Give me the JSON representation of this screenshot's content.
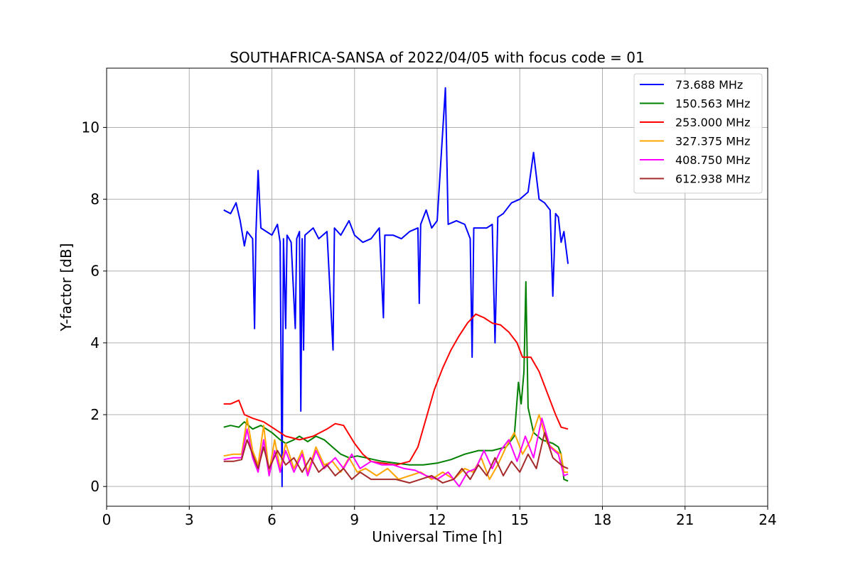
{
  "chart_data": {
    "type": "line",
    "title": "SOUTHAFRICA-SANSA of 2022/04/05 with focus code = 01",
    "xlabel": "Universal Time [h]",
    "ylabel": "Y-factor [dB]",
    "xlim": [
      0,
      24
    ],
    "ylim": [
      -0.55,
      11.65
    ],
    "xticks": [
      0,
      3,
      6,
      9,
      12,
      15,
      18,
      21,
      24
    ],
    "yticks": [
      0,
      2,
      4,
      6,
      8,
      10
    ],
    "grid": true,
    "legend_position": "top-right",
    "series": [
      {
        "name": " 73.688 MHz",
        "color": "#0000ff",
        "points": [
          [
            4.25,
            7.7
          ],
          [
            4.5,
            7.6
          ],
          [
            4.7,
            7.9
          ],
          [
            4.85,
            7.4
          ],
          [
            5.0,
            6.7
          ],
          [
            5.1,
            7.1
          ],
          [
            5.3,
            6.9
          ],
          [
            5.37,
            4.4
          ],
          [
            5.42,
            7.0
          ],
          [
            5.5,
            8.8
          ],
          [
            5.6,
            7.2
          ],
          [
            6.0,
            7.0
          ],
          [
            6.2,
            7.3
          ],
          [
            6.3,
            6.8
          ],
          [
            6.37,
            0.0
          ],
          [
            6.42,
            6.9
          ],
          [
            6.5,
            4.4
          ],
          [
            6.55,
            7.0
          ],
          [
            6.7,
            6.8
          ],
          [
            6.85,
            4.4
          ],
          [
            6.9,
            6.9
          ],
          [
            7.0,
            7.1
          ],
          [
            7.05,
            2.1
          ],
          [
            7.1,
            6.9
          ],
          [
            7.15,
            3.8
          ],
          [
            7.2,
            7.0
          ],
          [
            7.5,
            7.2
          ],
          [
            7.7,
            6.9
          ],
          [
            8.0,
            7.1
          ],
          [
            8.22,
            3.8
          ],
          [
            8.27,
            7.2
          ],
          [
            8.5,
            7.0
          ],
          [
            8.8,
            7.4
          ],
          [
            9.0,
            7.0
          ],
          [
            9.3,
            6.8
          ],
          [
            9.6,
            6.9
          ],
          [
            9.9,
            7.2
          ],
          [
            10.05,
            4.7
          ],
          [
            10.1,
            7.0
          ],
          [
            10.4,
            7.0
          ],
          [
            10.7,
            6.9
          ],
          [
            11.0,
            7.1
          ],
          [
            11.3,
            7.2
          ],
          [
            11.35,
            5.1
          ],
          [
            11.4,
            7.3
          ],
          [
            11.6,
            7.7
          ],
          [
            11.8,
            7.2
          ],
          [
            12.0,
            7.4
          ],
          [
            12.3,
            11.1
          ],
          [
            12.4,
            7.3
          ],
          [
            12.7,
            7.4
          ],
          [
            13.0,
            7.3
          ],
          [
            13.2,
            6.9
          ],
          [
            13.27,
            3.6
          ],
          [
            13.33,
            7.2
          ],
          [
            13.6,
            7.2
          ],
          [
            13.8,
            7.2
          ],
          [
            14.0,
            7.3
          ],
          [
            14.1,
            4.0
          ],
          [
            14.2,
            7.5
          ],
          [
            14.4,
            7.6
          ],
          [
            14.7,
            7.9
          ],
          [
            15.0,
            8.0
          ],
          [
            15.3,
            8.2
          ],
          [
            15.5,
            9.3
          ],
          [
            15.7,
            8.0
          ],
          [
            15.9,
            7.9
          ],
          [
            16.1,
            7.7
          ],
          [
            16.2,
            5.3
          ],
          [
            16.3,
            7.6
          ],
          [
            16.4,
            7.5
          ],
          [
            16.5,
            6.8
          ],
          [
            16.6,
            7.1
          ],
          [
            16.75,
            6.2
          ]
        ]
      },
      {
        "name": "150.563 MHz",
        "color": "#008000",
        "points": [
          [
            4.25,
            1.65
          ],
          [
            4.5,
            1.7
          ],
          [
            4.8,
            1.65
          ],
          [
            5.0,
            1.8
          ],
          [
            5.3,
            1.6
          ],
          [
            5.6,
            1.7
          ],
          [
            6.0,
            1.5
          ],
          [
            6.3,
            1.3
          ],
          [
            6.5,
            1.2
          ],
          [
            6.8,
            1.3
          ],
          [
            7.0,
            1.4
          ],
          [
            7.3,
            1.25
          ],
          [
            7.6,
            1.4
          ],
          [
            7.9,
            1.3
          ],
          [
            8.2,
            1.1
          ],
          [
            8.5,
            0.9
          ],
          [
            8.8,
            0.8
          ],
          [
            9.1,
            0.85
          ],
          [
            9.4,
            0.8
          ],
          [
            9.7,
            0.75
          ],
          [
            10.0,
            0.7
          ],
          [
            10.5,
            0.65
          ],
          [
            11.0,
            0.6
          ],
          [
            11.5,
            0.6
          ],
          [
            12.0,
            0.65
          ],
          [
            12.5,
            0.75
          ],
          [
            13.0,
            0.9
          ],
          [
            13.5,
            1.0
          ],
          [
            14.0,
            1.0
          ],
          [
            14.5,
            1.1
          ],
          [
            14.8,
            1.4
          ],
          [
            14.95,
            2.9
          ],
          [
            15.05,
            2.3
          ],
          [
            15.15,
            3.2
          ],
          [
            15.22,
            5.7
          ],
          [
            15.3,
            2.2
          ],
          [
            15.5,
            1.5
          ],
          [
            15.8,
            1.3
          ],
          [
            16.0,
            1.25
          ],
          [
            16.2,
            1.2
          ],
          [
            16.4,
            1.1
          ],
          [
            16.5,
            0.9
          ],
          [
            16.6,
            0.2
          ],
          [
            16.75,
            0.15
          ]
        ]
      },
      {
        "name": "253.000 MHz",
        "color": "#ff0000",
        "points": [
          [
            4.25,
            2.3
          ],
          [
            4.5,
            2.3
          ],
          [
            4.8,
            2.4
          ],
          [
            5.0,
            2.0
          ],
          [
            5.3,
            1.9
          ],
          [
            5.7,
            1.8
          ],
          [
            6.0,
            1.65
          ],
          [
            6.5,
            1.4
          ],
          [
            7.0,
            1.3
          ],
          [
            7.5,
            1.4
          ],
          [
            8.0,
            1.6
          ],
          [
            8.3,
            1.75
          ],
          [
            8.6,
            1.7
          ],
          [
            9.0,
            1.2
          ],
          [
            9.3,
            0.9
          ],
          [
            9.6,
            0.7
          ],
          [
            10.0,
            0.65
          ],
          [
            10.5,
            0.6
          ],
          [
            11.0,
            0.7
          ],
          [
            11.3,
            1.1
          ],
          [
            11.6,
            1.9
          ],
          [
            11.9,
            2.7
          ],
          [
            12.2,
            3.3
          ],
          [
            12.5,
            3.8
          ],
          [
            12.8,
            4.2
          ],
          [
            13.1,
            4.55
          ],
          [
            13.4,
            4.8
          ],
          [
            13.7,
            4.7
          ],
          [
            14.0,
            4.55
          ],
          [
            14.3,
            4.5
          ],
          [
            14.6,
            4.3
          ],
          [
            14.9,
            4.0
          ],
          [
            15.1,
            3.6
          ],
          [
            15.4,
            3.6
          ],
          [
            15.7,
            3.2
          ],
          [
            16.0,
            2.6
          ],
          [
            16.3,
            2.0
          ],
          [
            16.5,
            1.65
          ],
          [
            16.75,
            1.6
          ]
        ]
      },
      {
        "name": "327.375 MHz",
        "color": "#ffa500",
        "points": [
          [
            4.25,
            0.85
          ],
          [
            4.6,
            0.9
          ],
          [
            4.9,
            0.9
          ],
          [
            5.1,
            1.9
          ],
          [
            5.3,
            1.0
          ],
          [
            5.5,
            0.6
          ],
          [
            5.7,
            1.7
          ],
          [
            5.9,
            0.4
          ],
          [
            6.1,
            1.3
          ],
          [
            6.3,
            0.5
          ],
          [
            6.5,
            1.2
          ],
          [
            6.8,
            0.5
          ],
          [
            7.1,
            1.0
          ],
          [
            7.3,
            0.4
          ],
          [
            7.6,
            1.1
          ],
          [
            7.9,
            0.6
          ],
          [
            8.2,
            0.7
          ],
          [
            8.5,
            0.4
          ],
          [
            8.8,
            0.8
          ],
          [
            9.1,
            0.4
          ],
          [
            9.4,
            0.5
          ],
          [
            9.8,
            0.3
          ],
          [
            10.2,
            0.5
          ],
          [
            10.6,
            0.2
          ],
          [
            11.0,
            0.3
          ],
          [
            11.4,
            0.4
          ],
          [
            11.8,
            0.2
          ],
          [
            12.2,
            0.4
          ],
          [
            12.6,
            0.2
          ],
          [
            13.0,
            0.5
          ],
          [
            13.3,
            0.4
          ],
          [
            13.6,
            0.8
          ],
          [
            13.9,
            0.2
          ],
          [
            14.2,
            0.6
          ],
          [
            14.5,
            1.1
          ],
          [
            14.8,
            1.5
          ],
          [
            15.1,
            0.9
          ],
          [
            15.4,
            1.3
          ],
          [
            15.7,
            2.0
          ],
          [
            16.0,
            1.2
          ],
          [
            16.3,
            1.0
          ],
          [
            16.5,
            0.9
          ],
          [
            16.6,
            0.4
          ],
          [
            16.75,
            0.4
          ]
        ]
      },
      {
        "name": "408.750 MHz",
        "color": "#ff00ff",
        "points": [
          [
            4.25,
            0.75
          ],
          [
            4.6,
            0.8
          ],
          [
            4.9,
            0.8
          ],
          [
            5.1,
            1.6
          ],
          [
            5.3,
            0.8
          ],
          [
            5.5,
            0.4
          ],
          [
            5.7,
            1.3
          ],
          [
            5.9,
            0.3
          ],
          [
            6.1,
            1.0
          ],
          [
            6.3,
            0.4
          ],
          [
            6.5,
            1.0
          ],
          [
            6.8,
            0.4
          ],
          [
            7.1,
            0.9
          ],
          [
            7.3,
            0.3
          ],
          [
            7.6,
            1.0
          ],
          [
            7.9,
            0.5
          ],
          [
            8.3,
            0.8
          ],
          [
            8.6,
            0.5
          ],
          [
            8.9,
            0.9
          ],
          [
            9.2,
            0.5
          ],
          [
            9.6,
            0.7
          ],
          [
            10.0,
            0.6
          ],
          [
            10.4,
            0.6
          ],
          [
            10.8,
            0.5
          ],
          [
            11.2,
            0.45
          ],
          [
            11.6,
            0.3
          ],
          [
            12.0,
            0.2
          ],
          [
            12.4,
            0.4
          ],
          [
            12.8,
            0.0
          ],
          [
            13.1,
            0.4
          ],
          [
            13.4,
            0.5
          ],
          [
            13.7,
            1.0
          ],
          [
            14.0,
            0.5
          ],
          [
            14.3,
            1.0
          ],
          [
            14.6,
            1.3
          ],
          [
            14.9,
            0.7
          ],
          [
            15.2,
            1.4
          ],
          [
            15.5,
            0.8
          ],
          [
            15.8,
            1.9
          ],
          [
            16.1,
            1.1
          ],
          [
            16.4,
            0.9
          ],
          [
            16.6,
            0.3
          ],
          [
            16.75,
            0.35
          ]
        ]
      },
      {
        "name": "612.938 MHz",
        "color": "#a52a2a",
        "points": [
          [
            4.25,
            0.7
          ],
          [
            4.6,
            0.7
          ],
          [
            4.9,
            0.75
          ],
          [
            5.1,
            1.3
          ],
          [
            5.3,
            0.9
          ],
          [
            5.5,
            0.5
          ],
          [
            5.7,
            1.1
          ],
          [
            5.9,
            0.5
          ],
          [
            6.2,
            1.0
          ],
          [
            6.5,
            0.6
          ],
          [
            6.8,
            0.8
          ],
          [
            7.1,
            0.4
          ],
          [
            7.4,
            0.8
          ],
          [
            7.7,
            0.4
          ],
          [
            8.0,
            0.6
          ],
          [
            8.3,
            0.3
          ],
          [
            8.6,
            0.5
          ],
          [
            8.9,
            0.2
          ],
          [
            9.2,
            0.4
          ],
          [
            9.6,
            0.2
          ],
          [
            10.0,
            0.2
          ],
          [
            10.5,
            0.2
          ],
          [
            11.0,
            0.1
          ],
          [
            11.4,
            0.2
          ],
          [
            11.8,
            0.3
          ],
          [
            12.2,
            0.1
          ],
          [
            12.6,
            0.2
          ],
          [
            12.9,
            0.5
          ],
          [
            13.2,
            0.2
          ],
          [
            13.5,
            0.6
          ],
          [
            13.8,
            0.3
          ],
          [
            14.1,
            0.8
          ],
          [
            14.4,
            0.3
          ],
          [
            14.7,
            0.7
          ],
          [
            15.0,
            0.4
          ],
          [
            15.3,
            0.9
          ],
          [
            15.6,
            0.5
          ],
          [
            15.9,
            1.5
          ],
          [
            16.2,
            0.8
          ],
          [
            16.5,
            0.6
          ],
          [
            16.6,
            0.55
          ],
          [
            16.75,
            0.5
          ]
        ]
      }
    ]
  }
}
